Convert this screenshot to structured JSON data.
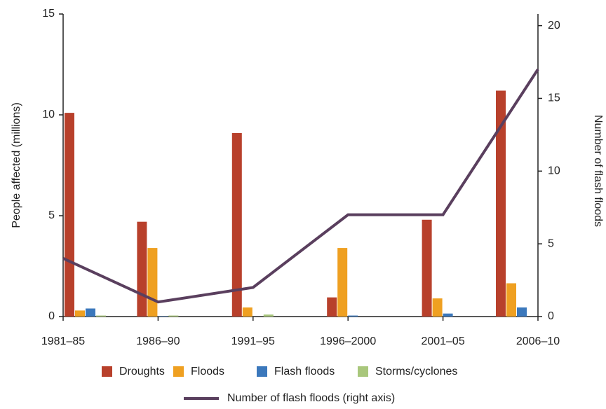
{
  "chart_data": {
    "type": "bar",
    "categories": [
      "1981–85",
      "1986–90",
      "1991–95",
      "1996–2000",
      "2001–05",
      "2006–10"
    ],
    "ylabel": "People affected (millions)",
    "y2label": "Number of flash floods",
    "ylim": [
      0,
      15
    ],
    "yticks": [
      0,
      5,
      10,
      15
    ],
    "y2lim": [
      0,
      20.8
    ],
    "y2ticks": [
      0,
      5,
      10,
      15,
      20
    ],
    "series": [
      {
        "name": "Droughts",
        "color": "#b8402b",
        "values": [
          10.1,
          4.7,
          9.1,
          0.95,
          4.8,
          11.2
        ]
      },
      {
        "name": "Floods",
        "color": "#efa021",
        "values": [
          0.3,
          3.4,
          0.45,
          3.4,
          0.9,
          1.65
        ]
      },
      {
        "name": "Flash floods",
        "color": "#3b78bc",
        "values": [
          0.4,
          0.02,
          0,
          0.05,
          0.15,
          0.45
        ]
      },
      {
        "name": "Storms/cyclones",
        "color": "#a9c77c",
        "values": [
          0.05,
          0.05,
          0.1,
          0,
          0,
          0
        ]
      },
      {
        "name": "Number of flash floods (right axis)",
        "color": "#5a3f5e",
        "type": "line",
        "axis": "y2",
        "values": [
          4,
          1,
          2,
          7,
          7,
          17
        ]
      }
    ]
  }
}
